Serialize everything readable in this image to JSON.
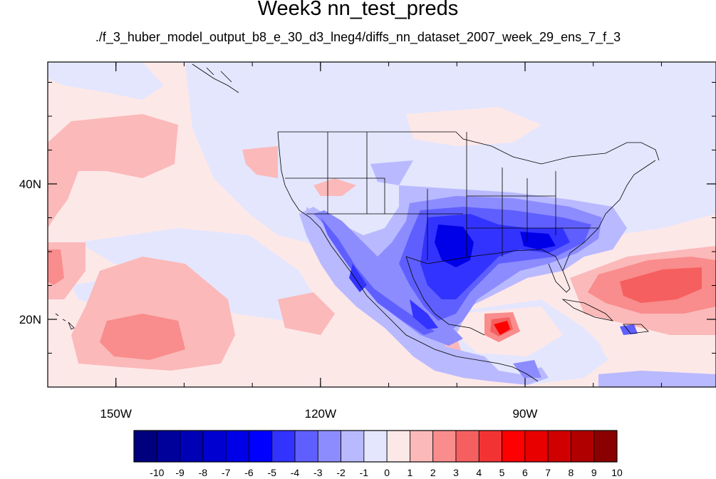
{
  "title": "Week3 nn_test_preds",
  "subtitle": "./f_3_huber_model_output_b8_e_30_d3_lneg4/diffs_nn_dataset_2007_week_29_ens_7_f_3",
  "map": {
    "lon_range": [
      -160,
      -62
    ],
    "lat_range": [
      10,
      58
    ],
    "lon_ticks": [
      {
        "value": -150,
        "label": "150W"
      },
      {
        "value": -120,
        "label": "120W"
      },
      {
        "value": -90,
        "label": "90W"
      }
    ],
    "lat_ticks": [
      {
        "value": 40,
        "label": "40N"
      },
      {
        "value": 20,
        "label": "20N"
      }
    ],
    "minor_lon_step": 10,
    "minor_lat_step": 5
  },
  "colorbar": {
    "labels": [
      "-10",
      "-9",
      "-8",
      "-7",
      "-6",
      "-5",
      "-4",
      "-3",
      "-2",
      "-1",
      "0",
      "1",
      "2",
      "3",
      "4",
      "5",
      "6",
      "7",
      "8",
      "9",
      "10"
    ],
    "colors": [
      "#00007f",
      "#00009a",
      "#0000b5",
      "#0000d0",
      "#0000e8",
      "#0000ff",
      "#3333ff",
      "#5f5fff",
      "#8c8cff",
      "#b9b9ff",
      "#e4e6fd",
      "#fde8e8",
      "#fbb9b9",
      "#f98c8c",
      "#f65f5f",
      "#f33333",
      "#ff0000",
      "#e80000",
      "#d00000",
      "#b00000",
      "#8a0000"
    ]
  },
  "field": {
    "background_color": "#fde8e8",
    "neutral_blue": "#e4e6fd"
  }
}
